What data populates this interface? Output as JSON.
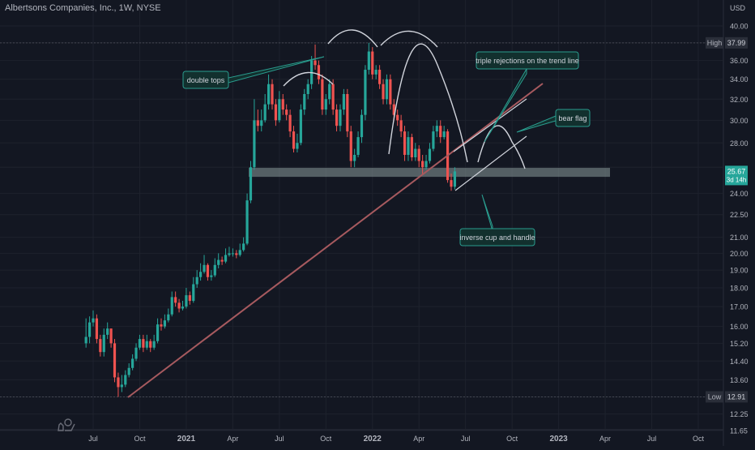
{
  "header": {
    "symbol_title": "Albertsons Companies, Inc., 1W, NYSE",
    "currency": "USD"
  },
  "colors": {
    "background": "#131722",
    "up": "#26a69a",
    "down": "#ef5350",
    "grid": "#1e222d",
    "axis_text": "#b2b5be",
    "trend_line": "#a75a5f",
    "arc": "#d1d4dc",
    "zone": "#8a9a9b",
    "callout_fill": "#12302e",
    "callout_border": "#2a9d8f",
    "callout_text": "#d1d4dc",
    "price_tag": "#26a69a",
    "hl_tag": "#2a2e39"
  },
  "chart_data": {
    "type": "candlestick",
    "title": "Albertsons Companies, Inc., 1W, NYSE",
    "log_scale": true,
    "y_ticks": [
      11.65,
      12.25,
      12.91,
      13.6,
      14.4,
      15.2,
      16.0,
      17.0,
      18.0,
      19.0,
      20.0,
      21.0,
      22.5,
      24.0,
      26.0,
      28.0,
      30.0,
      32.0,
      34.0,
      36.0,
      38.0,
      40.0
    ],
    "y_tick_labels": [
      "11.65",
      "12.25",
      "",
      "13.60",
      "14.40",
      "15.20",
      "16.00",
      "17.00",
      "18.00",
      "19.00",
      "20.00",
      "21.00",
      "22.50",
      "24.00",
      "",
      "28.00",
      "30.00",
      "32.00",
      "34.00",
      "36.00",
      "",
      "40.00"
    ],
    "x_ticks": [
      {
        "label": "Jul",
        "week": 0
      },
      {
        "label": "Oct",
        "week": 13
      },
      {
        "label": "2021",
        "week": 26
      },
      {
        "label": "Apr",
        "week": 39
      },
      {
        "label": "Jul",
        "week": 52
      },
      {
        "label": "Oct",
        "week": 65
      },
      {
        "label": "2022",
        "week": 78
      },
      {
        "label": "Apr",
        "week": 91
      },
      {
        "label": "Jul",
        "week": 104
      },
      {
        "label": "Oct",
        "week": 117
      },
      {
        "label": "2023",
        "week": 130
      },
      {
        "label": "Apr",
        "week": 143
      },
      {
        "label": "Jul",
        "week": 156
      },
      {
        "label": "Oct",
        "week": 169
      }
    ],
    "high": {
      "label": "High",
      "value": "37.99"
    },
    "low": {
      "label": "Low",
      "value": "12.91"
    },
    "last_price": {
      "value": "25.67",
      "countdown": "3d 14h"
    },
    "close": [
      15.5,
      16.2,
      16.4,
      15.4,
      14.8,
      15.6,
      15.9,
      15.2,
      13.7,
      13.3,
      13.4,
      13.8,
      14.1,
      14.5,
      15.0,
      15.4,
      15.0,
      15.3,
      15.0,
      15.3,
      16.1,
      16.0,
      16.3,
      16.6,
      17.5,
      17.2,
      16.9,
      17.0,
      17.6,
      17.3,
      18.2,
      18.6,
      18.9,
      19.3,
      18.6,
      18.7,
      19.3,
      19.6,
      19.5,
      19.9,
      20.0,
      20.0,
      19.9,
      20.2,
      20.6,
      23.5,
      26.0,
      30.0,
      29.5,
      30.0,
      31.5,
      33.5,
      31.5,
      30.0,
      32.0,
      31.0,
      30.5,
      29.0,
      27.5,
      28.0,
      31.0,
      32.5,
      33.5,
      36.0,
      35.5,
      34.0,
      31.0,
      32.0,
      33.5,
      31.0,
      29.5,
      31.0,
      32.5,
      29.0,
      26.5,
      27.0,
      28.5,
      30.5,
      35.0,
      37.0,
      34.5,
      35.0,
      33.5,
      32.0,
      34.0,
      31.5,
      30.5,
      30.0,
      29.0,
      27.0,
      28.5,
      26.8,
      27.5,
      26.5,
      26.0,
      26.5,
      27.5,
      29.0,
      29.5,
      28.5,
      29.0,
      25.0,
      24.5,
      25.67
    ],
    "open": [
      15.2,
      15.5,
      16.2,
      16.4,
      15.4,
      14.8,
      15.6,
      15.9,
      15.2,
      13.7,
      13.3,
      13.4,
      13.8,
      14.1,
      14.5,
      15.0,
      15.4,
      15.0,
      15.3,
      15.0,
      15.3,
      16.1,
      16.0,
      16.3,
      16.6,
      17.5,
      17.2,
      16.9,
      17.0,
      17.6,
      17.3,
      18.2,
      18.6,
      18.9,
      19.3,
      18.6,
      18.7,
      19.3,
      19.6,
      19.5,
      19.9,
      20.0,
      20.0,
      19.9,
      20.2,
      20.6,
      23.5,
      26.0,
      30.0,
      29.5,
      30.0,
      31.5,
      33.5,
      31.5,
      30.0,
      32.0,
      31.0,
      30.5,
      29.0,
      27.5,
      28.0,
      31.0,
      32.5,
      33.5,
      36.0,
      35.5,
      34.0,
      31.0,
      32.0,
      33.5,
      31.0,
      29.5,
      31.0,
      32.5,
      29.0,
      26.5,
      27.0,
      28.5,
      30.5,
      35.0,
      37.0,
      34.5,
      35.0,
      33.5,
      32.0,
      34.0,
      31.5,
      30.5,
      30.0,
      29.0,
      27.0,
      28.5,
      26.8,
      27.5,
      26.5,
      26.0,
      26.5,
      27.5,
      29.0,
      29.5,
      28.5,
      29.0,
      25.0,
      24.5
    ],
    "high_values": [
      16.4,
      16.5,
      16.8,
      16.6,
      15.6,
      15.9,
      16.2,
      15.9,
      15.4,
      13.9,
      13.8,
      14.0,
      14.3,
      14.7,
      15.2,
      15.6,
      15.6,
      15.6,
      15.4,
      15.6,
      16.4,
      16.4,
      16.6,
      16.9,
      17.8,
      17.8,
      17.4,
      17.3,
      18.0,
      17.8,
      18.6,
      19.0,
      19.4,
      19.9,
      19.4,
      19.0,
      19.7,
      20.0,
      19.8,
      20.3,
      20.4,
      20.3,
      20.2,
      20.6,
      21.0,
      24.0,
      26.5,
      32.0,
      31.0,
      31.0,
      32.5,
      34.5,
      34.0,
      32.0,
      32.8,
      32.5,
      31.5,
      31.0,
      29.5,
      28.8,
      31.5,
      33.0,
      34.0,
      36.5,
      37.8,
      36.0,
      34.5,
      32.5,
      34.0,
      34.0,
      31.5,
      31.5,
      33.0,
      33.0,
      29.5,
      27.5,
      29.0,
      31.0,
      35.5,
      37.99,
      37.5,
      35.5,
      35.5,
      34.0,
      34.5,
      34.5,
      32.0,
      31.0,
      30.5,
      29.5,
      29.0,
      28.8,
      28.0,
      27.8,
      27.0,
      27.0,
      28.0,
      29.5,
      30.0,
      30.0,
      29.5,
      29.2,
      25.5,
      26.0
    ],
    "low_values": [
      15.0,
      15.2,
      16.0,
      15.2,
      14.6,
      14.6,
      15.4,
      15.0,
      13.5,
      12.91,
      13.1,
      13.3,
      13.7,
      14.0,
      14.4,
      14.9,
      14.8,
      14.9,
      14.8,
      14.9,
      15.2,
      15.8,
      15.9,
      16.2,
      16.5,
      17.0,
      16.7,
      16.8,
      16.9,
      17.1,
      17.2,
      18.0,
      18.4,
      18.8,
      18.4,
      18.4,
      18.6,
      19.1,
      19.3,
      19.4,
      19.8,
      19.8,
      19.7,
      19.8,
      20.1,
      20.5,
      23.3,
      25.8,
      29.0,
      29.0,
      29.8,
      31.0,
      31.0,
      29.5,
      29.8,
      30.5,
      30.0,
      28.5,
      27.2,
      27.2,
      27.8,
      30.5,
      32.0,
      33.0,
      35.0,
      33.5,
      30.5,
      30.5,
      31.5,
      30.5,
      29.0,
      29.0,
      30.5,
      28.5,
      26.0,
      26.0,
      26.8,
      28.0,
      30.0,
      34.5,
      34.0,
      34.0,
      33.0,
      31.5,
      31.5,
      31.0,
      30.0,
      29.5,
      28.5,
      26.5,
      26.5,
      26.5,
      26.5,
      26.0,
      25.5,
      25.8,
      26.3,
      27.3,
      28.5,
      28.0,
      28.3,
      24.8,
      24.2,
      24.3
    ],
    "annotations": [
      {
        "text": "double tops"
      },
      {
        "text": "triple rejections on the trend line"
      },
      {
        "text": "bear flag"
      },
      {
        "text": "inverse cup and handle"
      }
    ],
    "legend": "none",
    "grid": true
  }
}
